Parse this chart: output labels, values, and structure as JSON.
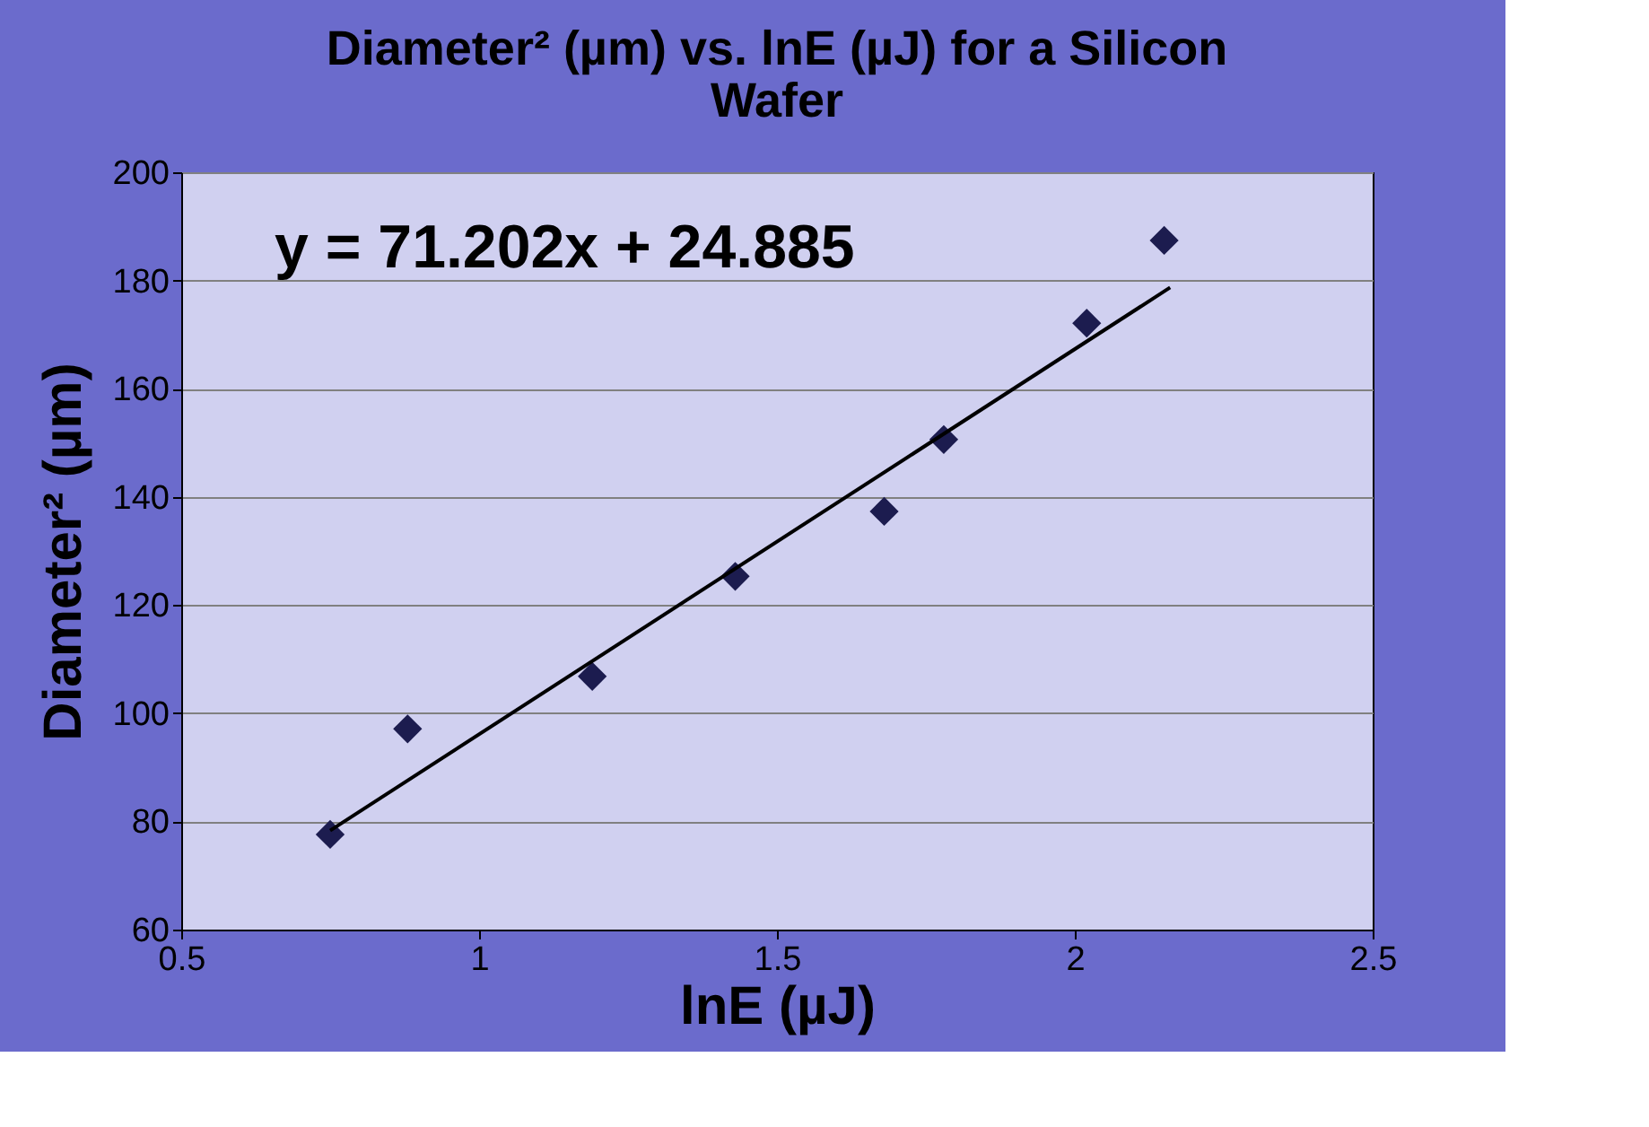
{
  "chart_data": {
    "type": "scatter",
    "title": [
      "Diameter² (µm) vs. lnE (µJ) for a Silicon",
      "Wafer"
    ],
    "xlabel": "lnE (µJ)",
    "ylabel": "Diameter²  (µm)",
    "xlim": [
      0.5,
      2.5
    ],
    "xticks": [
      0.5,
      1,
      1.5,
      2,
      2.5
    ],
    "ylim": [
      60,
      200
    ],
    "yticks": [
      60,
      80,
      100,
      120,
      140,
      160,
      180,
      200
    ],
    "grid": "y",
    "marker": "diamond",
    "annotations": [
      "y = 71.202x + 24.885"
    ],
    "series": [
      {
        "color": "#1c1c4f",
        "x": [
          0.75,
          0.88,
          1.19,
          1.43,
          1.68,
          1.78,
          2.02,
          2.15
        ],
        "values": [
          77.6,
          97.1,
          106.8,
          125.3,
          137.3,
          150.6,
          172.1,
          187.4
        ]
      },
      {
        "type": "line",
        "marker": "none",
        "line_style": "solid",
        "color": "#000000",
        "x": [
          0.75,
          2.16
        ],
        "values": [
          78.3,
          178.7
        ]
      }
    ]
  }
}
